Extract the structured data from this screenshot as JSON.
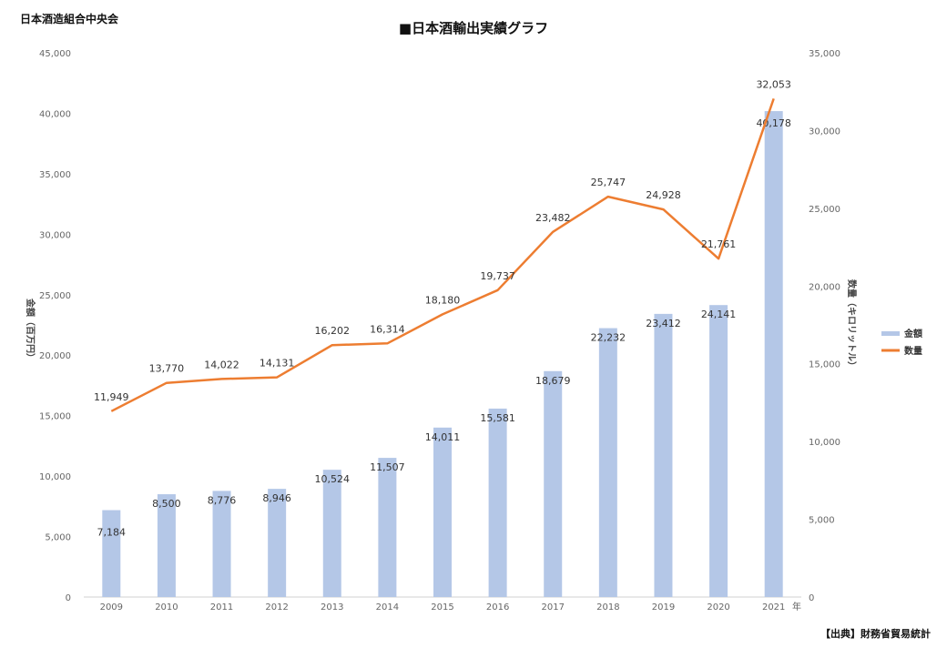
{
  "header": {
    "organization": "日本酒造組合中央会",
    "title": "■日本酒輸出実績グラフ"
  },
  "source": "【出典】財務省貿易統計",
  "chart_data": {
    "type": "bar",
    "categories": [
      "2009",
      "2010",
      "2011",
      "2012",
      "2013",
      "2014",
      "2015",
      "2016",
      "2017",
      "2018",
      "2019",
      "2020",
      "2021"
    ],
    "x_unit_label": "年",
    "series": [
      {
        "name": "金額",
        "type": "bar",
        "axis": "left",
        "color": "#b4c7e7",
        "values": [
          7184,
          8500,
          8776,
          8946,
          10524,
          11507,
          14011,
          15581,
          18679,
          22232,
          23412,
          24141,
          40178
        ],
        "labels": [
          "7,184",
          "8,500",
          "8,776",
          "8,946",
          "10,524",
          "11,507",
          "14,011",
          "15,581",
          "18,679",
          "22,232",
          "23,412",
          "24,141",
          "40,178"
        ]
      },
      {
        "name": "数量",
        "type": "line",
        "axis": "right",
        "color": "#ed7d31",
        "values": [
          11949,
          13770,
          14022,
          14131,
          16202,
          16314,
          18180,
          19737,
          23482,
          25747,
          24928,
          21761,
          32053
        ],
        "labels": [
          "11,949",
          "13,770",
          "14,022",
          "14,131",
          "16,202",
          "16,314",
          "18,180",
          "19,737",
          "23,482",
          "25,747",
          "24,928",
          "21,761",
          "32,053"
        ]
      }
    ],
    "y_left": {
      "label": "金額（百万円）",
      "range": [
        0,
        45000
      ],
      "ticks": [
        "0",
        "5,000",
        "10,000",
        "15,000",
        "20,000",
        "25,000",
        "30,000",
        "35,000",
        "40,000",
        "45,000"
      ]
    },
    "y_right": {
      "label": "数量（キロリットル）",
      "range": [
        0,
        35000
      ],
      "ticks": [
        "0",
        "5,000",
        "10,000",
        "15,000",
        "20,000",
        "25,000",
        "30,000",
        "35,000"
      ]
    },
    "grid": false,
    "legend_position": "right"
  }
}
